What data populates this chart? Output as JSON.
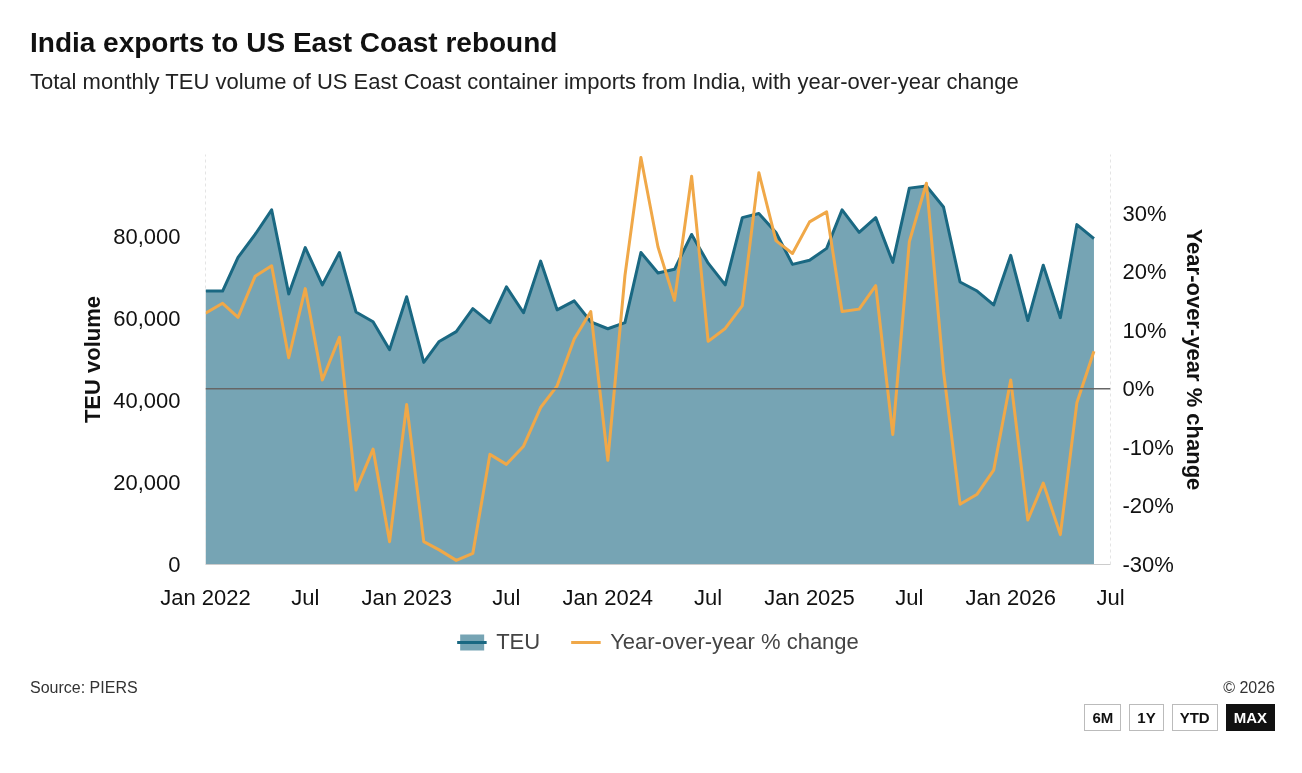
{
  "chart_data": {
    "type": "area",
    "title": "India exports to US East Coast rebound",
    "subtitle": "Total monthly TEU volume of US East Coast container imports from India, with year-over-year change",
    "ylabel": "TEU volume",
    "y2label": "Year-over-year % change",
    "x": [
      "2022-01",
      "2022-02",
      "2022-03",
      "2022-04",
      "2022-05",
      "2022-06",
      "2022-07",
      "2022-08",
      "2022-09",
      "2022-10",
      "2022-11",
      "2022-12",
      "2023-01",
      "2023-02",
      "2023-03",
      "2023-04",
      "2023-05",
      "2023-06",
      "2023-07",
      "2023-08",
      "2023-09",
      "2023-10",
      "2023-11",
      "2023-12",
      "2024-01",
      "2024-02",
      "2024-03",
      "2024-04",
      "2024-05",
      "2024-06",
      "2024-07",
      "2024-08",
      "2024-09",
      "2024-10",
      "2024-11",
      "2024-12",
      "2025-01",
      "2025-02",
      "2025-03",
      "2025-04",
      "2025-05",
      "2025-06",
      "2025-07",
      "2025-08",
      "2025-09",
      "2025-10",
      "2025-11",
      "2025-12",
      "2026-01",
      "2026-02",
      "2026-03",
      "2026-04",
      "2026-05",
      "2026-06"
    ],
    "series": [
      {
        "name": "TEU",
        "color": "#1a6882",
        "values": [
          66700,
          66700,
          74900,
          80500,
          86500,
          66000,
          77300,
          68200,
          76100,
          61600,
          59200,
          52400,
          65300,
          49300,
          54400,
          56800,
          62400,
          59000,
          67700,
          61400,
          74000,
          62100,
          64300,
          59200,
          57500,
          59000,
          76100,
          71100,
          72000,
          80500,
          73500,
          68200,
          84600,
          85600,
          81000,
          73200,
          74200,
          77100,
          86500,
          81000,
          84600,
          73700,
          91800,
          92300,
          87200,
          68900,
          66700,
          63300,
          75400,
          59500,
          73000,
          60200,
          82900,
          79500
        ]
      },
      {
        "name": "Year-over-year % change",
        "type": "line",
        "axis": "y2",
        "color": "#f0a848",
        "values": [
          12.9,
          14.6,
          12.2,
          19.2,
          21.0,
          5.3,
          17.1,
          1.5,
          8.8,
          -17.3,
          -10.3,
          -26.1,
          -2.7,
          -26.1,
          -27.5,
          -29.3,
          -28.1,
          -11.2,
          -12.9,
          -9.8,
          -3.2,
          0.5,
          8.5,
          13.2,
          -12.2,
          19.3,
          39.5,
          24.2,
          15.1,
          36.3,
          8.1,
          10.3,
          14.2,
          36.9,
          25.3,
          23.1,
          28.5,
          30.2,
          13.2,
          13.6,
          17.6,
          -7.8,
          25.1,
          35.1,
          3.0,
          -19.7,
          -18.0,
          -13.9,
          1.5,
          -22.4,
          -16.1,
          -24.9,
          -2.4,
          6.4
        ]
      }
    ],
    "xlim": [
      "2022-01",
      "2026-07"
    ],
    "xticks": [
      {
        "value": "2022-01",
        "label": "Jan 2022"
      },
      {
        "value": "2022-07",
        "label": "Jul"
      },
      {
        "value": "2023-01",
        "label": "Jan 2023"
      },
      {
        "value": "2023-07",
        "label": "Jul"
      },
      {
        "value": "2024-01",
        "label": "Jan 2024"
      },
      {
        "value": "2024-07",
        "label": "Jul"
      },
      {
        "value": "2025-01",
        "label": "Jan 2025"
      },
      {
        "value": "2025-07",
        "label": "Jul"
      },
      {
        "value": "2026-01",
        "label": "Jan 2026"
      },
      {
        "value": "2026-07",
        "label": "Jul"
      }
    ],
    "ylim": [
      0,
      100000
    ],
    "yticks": [
      {
        "value": 0,
        "label": "0"
      },
      {
        "value": 20000,
        "label": "20,000"
      },
      {
        "value": 40000,
        "label": "40,000"
      },
      {
        "value": 60000,
        "label": "60,000"
      },
      {
        "value": 80000,
        "label": "80,000"
      }
    ],
    "y2lim": [
      -30,
      40
    ],
    "y2ticks": [
      {
        "value": -30,
        "label": "-30%"
      },
      {
        "value": -20,
        "label": "-20%"
      },
      {
        "value": -10,
        "label": "-10%"
      },
      {
        "value": 0,
        "label": "0%"
      },
      {
        "value": 10,
        "label": "10%"
      },
      {
        "value": 20,
        "label": "20%"
      },
      {
        "value": 30,
        "label": "30%"
      }
    ],
    "ref_lines": [
      {
        "axis": "y2",
        "value": 0,
        "label": null,
        "color": "#666666"
      }
    ],
    "legend": "bottom",
    "grid": false,
    "annotations": [
      "Source: PIERS",
      "© 2026",
      "6M",
      "1Y",
      "YTD",
      "MAX"
    ]
  }
}
